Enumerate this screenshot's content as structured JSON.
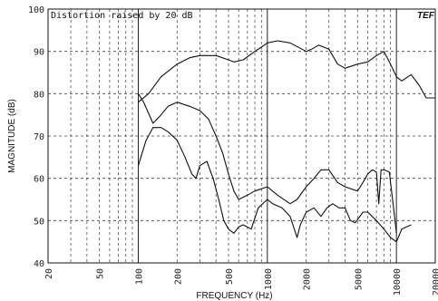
{
  "chart_data": {
    "type": "line",
    "annotation": "Distortion raised by  20 dB",
    "logo": "TEF",
    "xlabel": "FREQUENCY (Hz)",
    "ylabel": "MAGNITUDE (dB)",
    "xscale": "log",
    "xlim": [
      20,
      20000
    ],
    "ylim": [
      40,
      100
    ],
    "grid": true,
    "x_ticks": [
      20,
      50,
      100,
      200,
      500,
      1000,
      2000,
      5000,
      10000,
      20000
    ],
    "x_tick_labels": [
      "20",
      "50",
      "100",
      "200",
      "500",
      "1000",
      "2000",
      "5000",
      "10000",
      "20000"
    ],
    "y_ticks": [
      40,
      50,
      60,
      70,
      80,
      90,
      100
    ],
    "y_tick_labels": [
      "40",
      "50",
      "60",
      "70",
      "80",
      "90",
      "100"
    ],
    "series": [
      {
        "points": [
          [
            100,
            78
          ],
          [
            120,
            80
          ],
          [
            150,
            84
          ],
          [
            200,
            87
          ],
          [
            250,
            88.5
          ],
          [
            300,
            89
          ],
          [
            400,
            89
          ],
          [
            500,
            88
          ],
          [
            550,
            87.5
          ],
          [
            650,
            88
          ],
          [
            800,
            90
          ],
          [
            900,
            91
          ],
          [
            1000,
            92
          ],
          [
            1200,
            92.5
          ],
          [
            1500,
            92
          ],
          [
            2000,
            90
          ],
          [
            2200,
            90.5
          ],
          [
            2500,
            91.5
          ],
          [
            3000,
            90.5
          ],
          [
            3500,
            87
          ],
          [
            4000,
            86
          ],
          [
            5000,
            87
          ],
          [
            6000,
            87.5
          ],
          [
            7000,
            89
          ],
          [
            8000,
            90
          ],
          [
            9000,
            87
          ],
          [
            10000,
            84
          ],
          [
            11000,
            83
          ],
          [
            13000,
            84.5
          ],
          [
            15000,
            82
          ],
          [
            17000,
            79
          ],
          [
            20000,
            79
          ]
        ]
      },
      {
        "points": [
          [
            100,
            80
          ],
          [
            110,
            78
          ],
          [
            130,
            73
          ],
          [
            150,
            75
          ],
          [
            170,
            77
          ],
          [
            200,
            78
          ],
          [
            250,
            77
          ],
          [
            300,
            76
          ],
          [
            350,
            74
          ],
          [
            400,
            70
          ],
          [
            450,
            66
          ],
          [
            500,
            61
          ],
          [
            550,
            57
          ],
          [
            600,
            55
          ],
          [
            700,
            56
          ],
          [
            800,
            57
          ],
          [
            1000,
            58
          ],
          [
            1200,
            56
          ],
          [
            1500,
            54
          ],
          [
            1700,
            55
          ],
          [
            2000,
            58
          ],
          [
            2300,
            60
          ],
          [
            2600,
            62
          ],
          [
            3000,
            62
          ],
          [
            3500,
            59
          ],
          [
            4000,
            58
          ],
          [
            5000,
            57
          ],
          [
            5500,
            59
          ],
          [
            6000,
            61
          ],
          [
            6500,
            62
          ],
          [
            7000,
            61.5
          ],
          [
            7300,
            54
          ],
          [
            7600,
            62
          ],
          [
            8000,
            62
          ],
          [
            8800,
            61.5
          ],
          [
            9500,
            53
          ],
          [
            10000,
            47
          ]
        ]
      },
      {
        "points": [
          [
            100,
            63
          ],
          [
            115,
            69
          ],
          [
            130,
            72
          ],
          [
            150,
            72
          ],
          [
            170,
            71
          ],
          [
            200,
            69
          ],
          [
            230,
            65
          ],
          [
            260,
            61
          ],
          [
            280,
            60
          ],
          [
            300,
            63
          ],
          [
            340,
            64
          ],
          [
            380,
            60
          ],
          [
            420,
            55
          ],
          [
            460,
            50
          ],
          [
            500,
            48
          ],
          [
            550,
            47
          ],
          [
            600,
            48.5
          ],
          [
            650,
            49
          ],
          [
            750,
            48
          ],
          [
            850,
            53
          ],
          [
            1000,
            55
          ],
          [
            1100,
            54
          ],
          [
            1300,
            53
          ],
          [
            1500,
            51
          ],
          [
            1700,
            46
          ],
          [
            1800,
            49
          ],
          [
            2000,
            52
          ],
          [
            2300,
            53
          ],
          [
            2600,
            51
          ],
          [
            2900,
            53
          ],
          [
            3200,
            54
          ],
          [
            3600,
            53
          ],
          [
            4000,
            53
          ],
          [
            4400,
            50
          ],
          [
            4800,
            49.5
          ],
          [
            5500,
            52
          ],
          [
            6000,
            52
          ],
          [
            7000,
            50
          ],
          [
            8000,
            48
          ],
          [
            9000,
            46
          ],
          [
            10000,
            45
          ],
          [
            11000,
            48
          ],
          [
            12000,
            48.5
          ],
          [
            13000,
            49
          ]
        ]
      }
    ]
  }
}
